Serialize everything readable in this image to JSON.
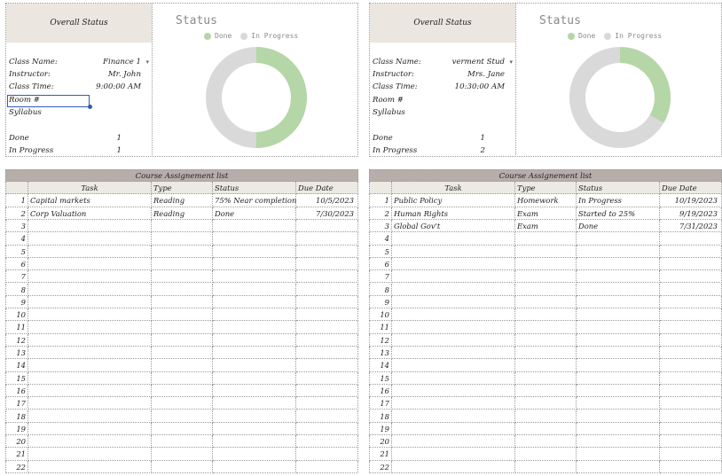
{
  "colors": {
    "done": "#b5d6a6",
    "in_progress": "#d9d9d9",
    "header_bg": "#ebe6df",
    "table_title_bg": "#b7aeaa"
  },
  "panels": [
    {
      "overall_title": "Overall Status",
      "class_name_label": "Class Name:",
      "class_name_value": "Finance 1",
      "instructor_label": "Instructor:",
      "instructor_value": "Mr. John",
      "class_time_label": "Class Time:",
      "class_time_value": "9:00:00 AM",
      "room_label": "Room #",
      "syllabus_label": "Syllabus",
      "done_label": "Done",
      "done_value": "1",
      "inprogress_label": "In Progress",
      "inprogress_value": "1",
      "chart_title": "Status",
      "legend_done": "Done",
      "legend_inprogress": "In Progress",
      "table_title": "Course Assignement list",
      "columns": [
        "Task",
        "Type",
        "Status",
        "Due Date"
      ],
      "rows": [
        [
          "1",
          "Capital markets",
          "Reading",
          "75% Near completion",
          "10/5/2023"
        ],
        [
          "2",
          "Corp Valuation",
          "Reading",
          "Done",
          "7/30/2023"
        ],
        [
          "3",
          "",
          "",
          "",
          ""
        ],
        [
          "4",
          "",
          "",
          "",
          ""
        ],
        [
          "5",
          "",
          "",
          "",
          ""
        ],
        [
          "6",
          "",
          "",
          "",
          ""
        ],
        [
          "7",
          "",
          "",
          "",
          ""
        ],
        [
          "8",
          "",
          "",
          "",
          ""
        ],
        [
          "9",
          "",
          "",
          "",
          ""
        ],
        [
          "10",
          "",
          "",
          "",
          ""
        ],
        [
          "11",
          "",
          "",
          "",
          ""
        ],
        [
          "12",
          "",
          "",
          "",
          ""
        ],
        [
          "13",
          "",
          "",
          "",
          ""
        ],
        [
          "14",
          "",
          "",
          "",
          ""
        ],
        [
          "15",
          "",
          "",
          "",
          ""
        ],
        [
          "16",
          "",
          "",
          "",
          ""
        ],
        [
          "17",
          "",
          "",
          "",
          ""
        ],
        [
          "18",
          "",
          "",
          "",
          ""
        ],
        [
          "19",
          "",
          "",
          "",
          ""
        ],
        [
          "20",
          "",
          "",
          "",
          ""
        ],
        [
          "21",
          "",
          "",
          "",
          ""
        ],
        [
          "22",
          "",
          "",
          "",
          ""
        ]
      ]
    },
    {
      "overall_title": "Overall Status",
      "class_name_label": "Class Name:",
      "class_name_value": "verment Stud",
      "instructor_label": "Instructor:",
      "instructor_value": "Mrs. Jane",
      "class_time_label": "Class Time:",
      "class_time_value": "10:30:00 AM",
      "room_label": "Room #",
      "syllabus_label": "Syllabus",
      "done_label": "Done",
      "done_value": "1",
      "inprogress_label": "In Progress",
      "inprogress_value": "2",
      "chart_title": "Status",
      "legend_done": "Done",
      "legend_inprogress": "In Progress",
      "table_title": "Course Assignement list",
      "columns": [
        "Task",
        "Type",
        "Status",
        "Due Date"
      ],
      "rows": [
        [
          "1",
          "Public Policy",
          "Homework",
          "In Progress",
          "10/19/2023"
        ],
        [
          "2",
          "Human Rights",
          "Exam",
          "Started to 25%",
          "9/19/2023"
        ],
        [
          "3",
          "Global Gov't",
          "Exam",
          "Done",
          "7/31/2023"
        ],
        [
          "4",
          "",
          "",
          "",
          ""
        ],
        [
          "5",
          "",
          "",
          "",
          ""
        ],
        [
          "6",
          "",
          "",
          "",
          ""
        ],
        [
          "7",
          "",
          "",
          "",
          ""
        ],
        [
          "8",
          "",
          "",
          "",
          ""
        ],
        [
          "9",
          "",
          "",
          "",
          ""
        ],
        [
          "10",
          "",
          "",
          "",
          ""
        ],
        [
          "11",
          "",
          "",
          "",
          ""
        ],
        [
          "12",
          "",
          "",
          "",
          ""
        ],
        [
          "13",
          "",
          "",
          "",
          ""
        ],
        [
          "14",
          "",
          "",
          "",
          ""
        ],
        [
          "15",
          "",
          "",
          "",
          ""
        ],
        [
          "16",
          "",
          "",
          "",
          ""
        ],
        [
          "17",
          "",
          "",
          "",
          ""
        ],
        [
          "18",
          "",
          "",
          "",
          ""
        ],
        [
          "19",
          "",
          "",
          "",
          ""
        ],
        [
          "20",
          "",
          "",
          "",
          ""
        ],
        [
          "21",
          "",
          "",
          "",
          ""
        ],
        [
          "22",
          "",
          "",
          "",
          ""
        ]
      ]
    }
  ]
}
